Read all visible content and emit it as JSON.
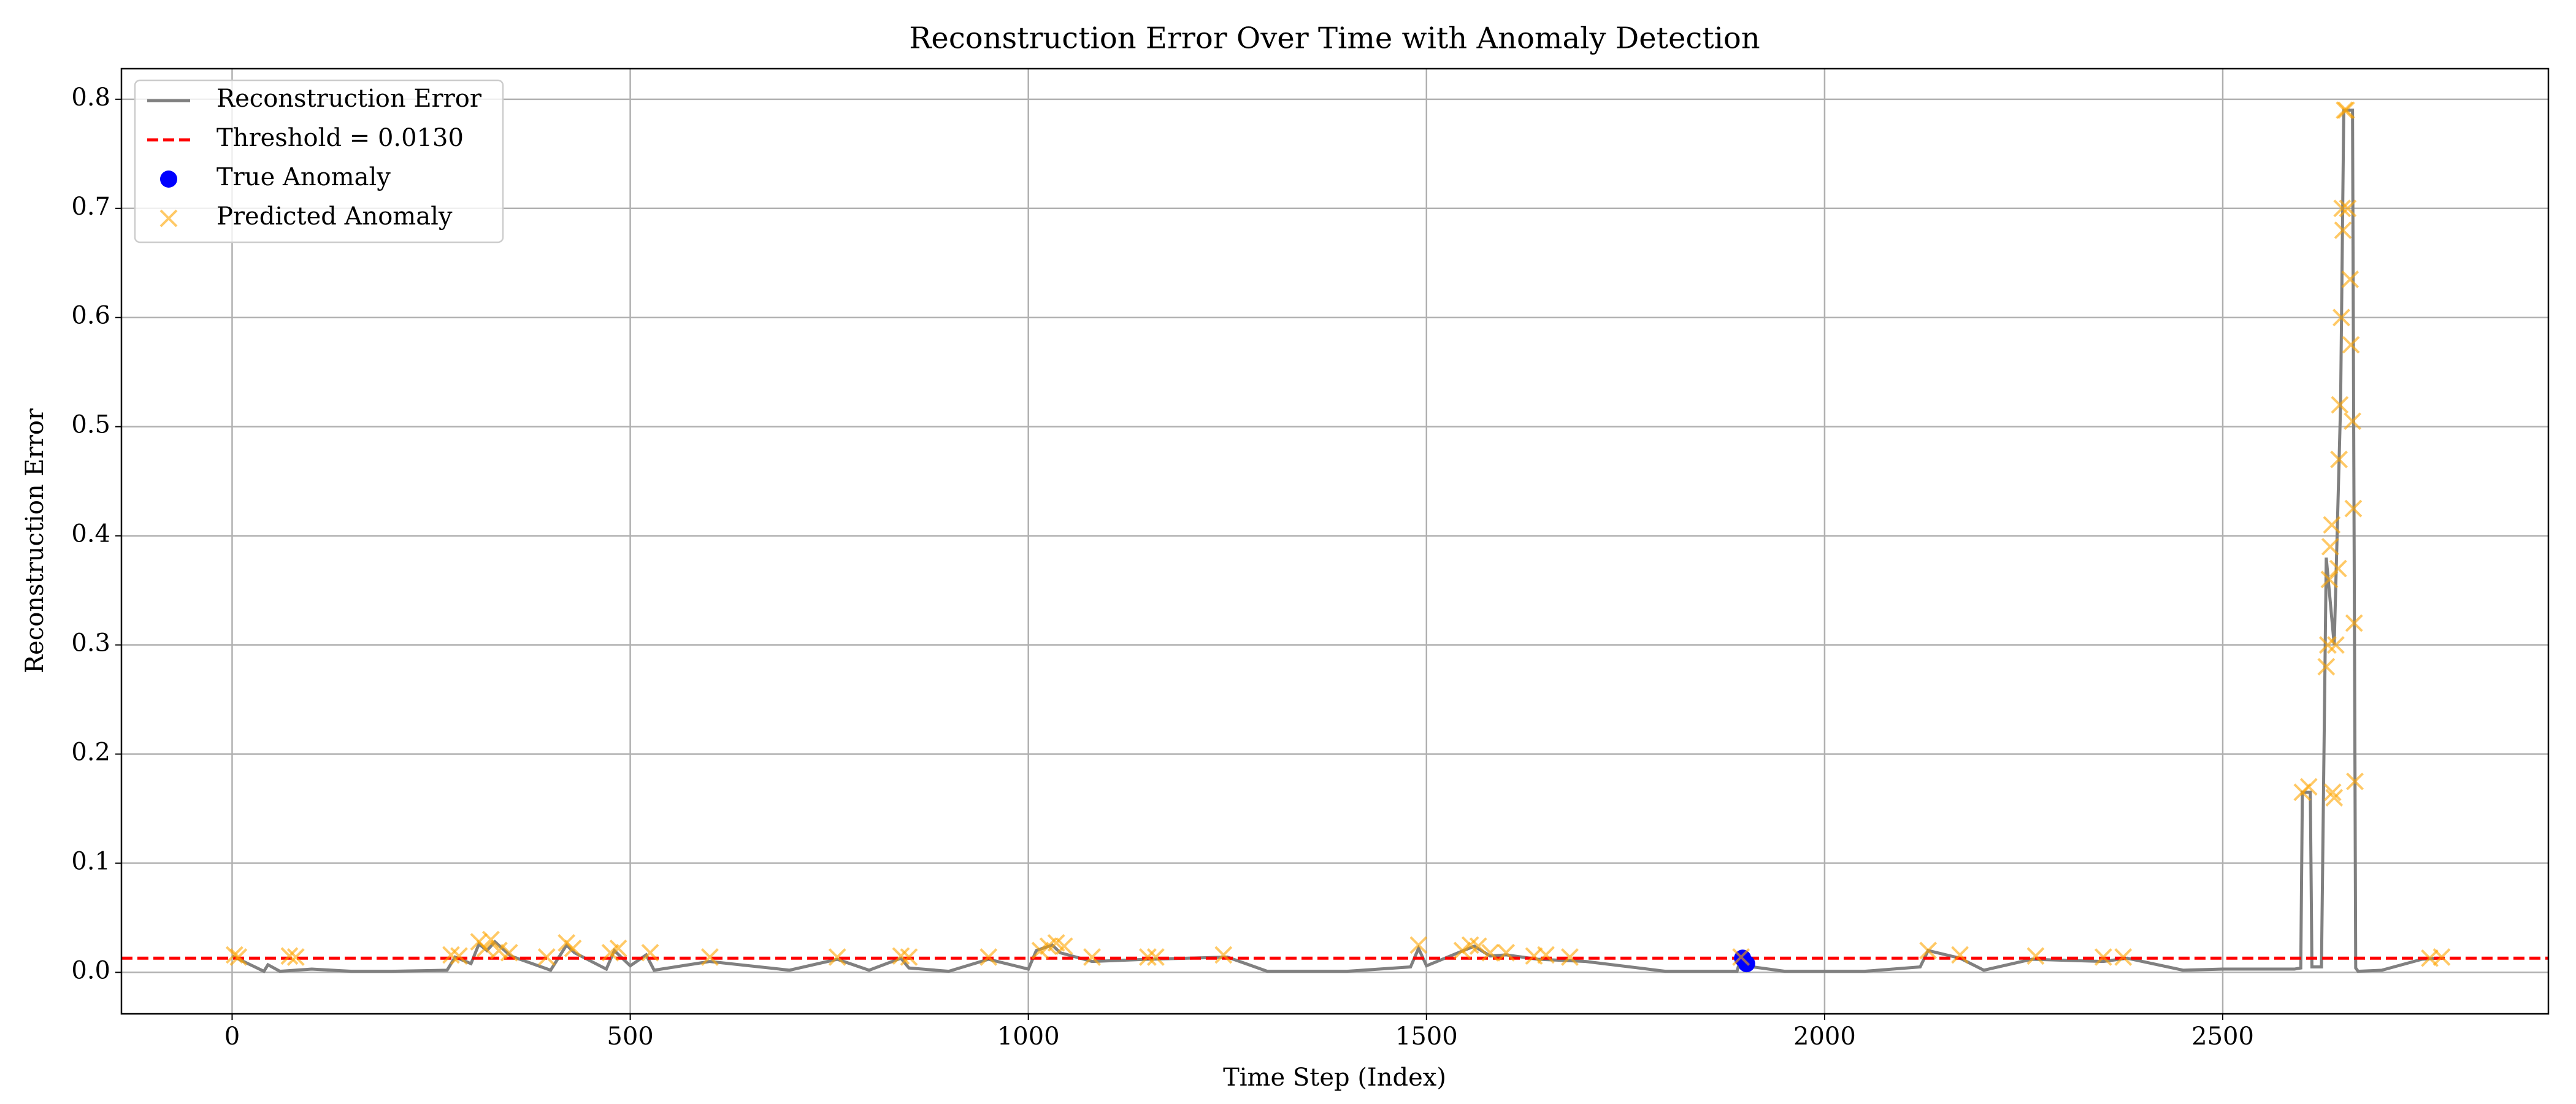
{
  "chart_data": {
    "type": "line",
    "title": "Reconstruction Error Over Time with Anomaly Detection",
    "x_label": "Time Step (Index)",
    "y_label": "Reconstruction Error",
    "xlim": [
      -139,
      2909
    ],
    "ylim": [
      -0.038,
      0.828
    ],
    "xticks": [
      0,
      500,
      1000,
      1500,
      2000,
      2500
    ],
    "yticks": [
      {
        "value": 0,
        "label": "0.0"
      },
      0.1,
      0.2,
      0.3,
      0.4,
      0.5,
      0.6,
      0.7,
      0.8
    ],
    "grid": true,
    "legend": "upper left",
    "series": [
      {
        "name": "Reconstruction Error",
        "kind": "line",
        "color": "#808080",
        "x": [
          0,
          40,
          45,
          60,
          100,
          150,
          200,
          270,
          280,
          300,
          310,
          320,
          330,
          350,
          400,
          420,
          430,
          470,
          480,
          500,
          520,
          530,
          600,
          700,
          760,
          800,
          840,
          850,
          900,
          950,
          1000,
          1010,
          1030,
          1040,
          1080,
          1150,
          1250,
          1300,
          1400,
          1480,
          1490,
          1500,
          1540,
          1560,
          1580,
          1600,
          1640,
          1700,
          1800,
          1890,
          1895,
          1900,
          1950,
          2050,
          2120,
          2130,
          2170,
          2200,
          2260,
          2350,
          2380,
          2450,
          2500,
          2590,
          2598,
          2600,
          2610,
          2612,
          2624,
          2630,
          2640,
          2648,
          2652,
          2655,
          2663,
          2667,
          2670,
          2700,
          2750,
          2770
        ],
        "values": [
          0.015,
          0.001,
          0.007,
          0.001,
          0.003,
          0.001,
          0.001,
          0.002,
          0.014,
          0.008,
          0.026,
          0.02,
          0.028,
          0.015,
          0.002,
          0.025,
          0.018,
          0.003,
          0.02,
          0.006,
          0.016,
          0.002,
          0.01,
          0.002,
          0.012,
          0.002,
          0.013,
          0.004,
          0.001,
          0.012,
          0.003,
          0.02,
          0.025,
          0.018,
          0.01,
          0.012,
          0.014,
          0.001,
          0.001,
          0.005,
          0.022,
          0.006,
          0.018,
          0.024,
          0.015,
          0.016,
          0.012,
          0.01,
          0.001,
          0.001,
          0.014,
          0.006,
          0.001,
          0.001,
          0.005,
          0.02,
          0.013,
          0.002,
          0.012,
          0.01,
          0.013,
          0.002,
          0.003,
          0.003,
          0.004,
          0.165,
          0.165,
          0.005,
          0.005,
          0.38,
          0.3,
          0.52,
          0.79,
          0.79,
          0.79,
          0.004,
          0.001,
          0.002,
          0.012,
          0.013
        ]
      },
      {
        "name": "Threshold = 0.0130",
        "kind": "hline",
        "color": "#ff0000",
        "value": 0.013
      },
      {
        "name": "True Anomaly",
        "kind": "dot",
        "color": "#0000ff",
        "x": [
          1897,
          1902
        ],
        "values": [
          0.013,
          0.008
        ]
      },
      {
        "name": "Predicted Anomaly",
        "kind": "cross",
        "color": "#ffa500",
        "x": [
          3,
          8,
          72,
          80,
          275,
          285,
          310,
          318,
          325,
          335,
          348,
          395,
          420,
          428,
          475,
          485,
          525,
          600,
          760,
          840,
          850,
          950,
          1015,
          1025,
          1035,
          1045,
          1080,
          1150,
          1160,
          1245,
          1490,
          1545,
          1555,
          1565,
          1580,
          1600,
          1635,
          1650,
          1680,
          1895,
          2130,
          2170,
          2265,
          2350,
          2375,
          2600,
          2608,
          2630,
          2632,
          2634,
          2635,
          2637,
          2638,
          2640,
          2642,
          2645,
          2646,
          2647,
          2649,
          2650,
          2651,
          2653,
          2655,
          2657,
          2660,
          2661,
          2663,
          2664,
          2665,
          2666,
          2760,
          2775
        ],
        "values": [
          0.016,
          0.014,
          0.015,
          0.014,
          0.016,
          0.015,
          0.028,
          0.022,
          0.03,
          0.02,
          0.018,
          0.014,
          0.027,
          0.022,
          0.018,
          0.022,
          0.018,
          0.014,
          0.014,
          0.015,
          0.014,
          0.014,
          0.02,
          0.024,
          0.027,
          0.024,
          0.014,
          0.014,
          0.014,
          0.016,
          0.025,
          0.02,
          0.025,
          0.024,
          0.018,
          0.018,
          0.015,
          0.016,
          0.014,
          0.014,
          0.02,
          0.016,
          0.015,
          0.014,
          0.014,
          0.165,
          0.17,
          0.28,
          0.3,
          0.36,
          0.39,
          0.41,
          0.165,
          0.16,
          0.3,
          0.37,
          0.47,
          0.52,
          0.6,
          0.7,
          0.68,
          0.79,
          0.79,
          0.7,
          0.635,
          0.575,
          0.505,
          0.425,
          0.32,
          0.175,
          0.013,
          0.014
        ]
      }
    ]
  }
}
